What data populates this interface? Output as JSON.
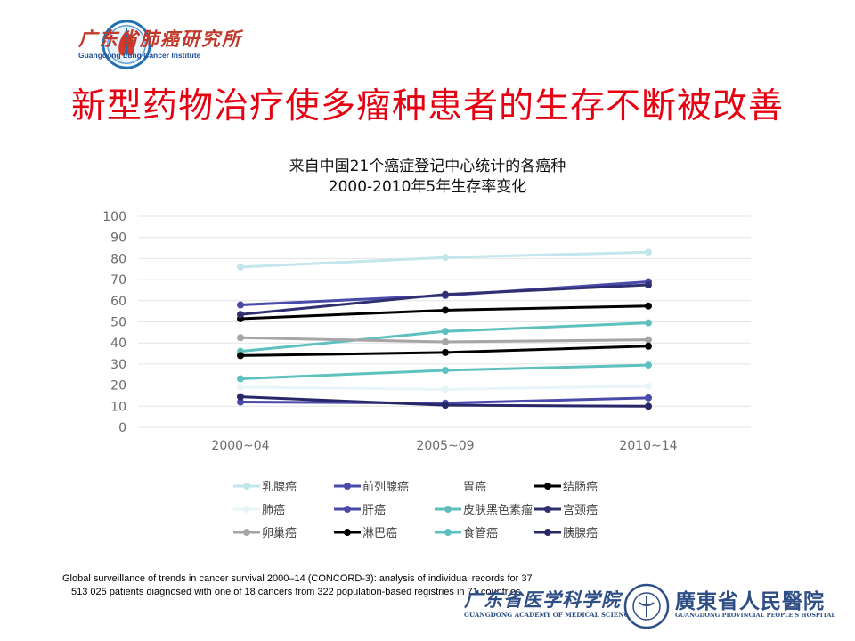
{
  "header": {
    "logo_cn": "广东省肺癌研究所",
    "logo_en": "Guangdong Lung Cancer Institute",
    "slide_title": "新型药物治疗使多瘤种患者的生存不断被改善"
  },
  "footer": {
    "citation_line1": "Global surveillance  of trends in cancer survival  2000–14  (CONCORD-3):  analysis of individual  records for 37",
    "citation_line2": "513 025 patients diagnosed with one of 18 cancers from 322 population-based registries in 71 countries",
    "logo_left_cn": "广东省医学科学院",
    "logo_left_en": "GUANGDONG ACADEMY OF MEDICAL SCIENCES",
    "logo_right_cn": "廣東省人民醫院",
    "logo_right_en": "GUANGDONG PROVINCIAL PEOPLE'S HOSPITAL"
  },
  "chart_data": {
    "type": "line",
    "title": "来自中国21个癌症登记中心统计的各癌种",
    "subtitle": "2000-2010年5年生存率变化",
    "xlabel": "",
    "ylabel": "",
    "categories": [
      "2000~04",
      "2005~09",
      "2010~14"
    ],
    "ylim": [
      0,
      100
    ],
    "yticks": [
      0,
      10,
      20,
      30,
      40,
      50,
      60,
      70,
      80,
      90,
      100
    ],
    "grid": true,
    "legend_position": "bottom",
    "series": [
      {
        "name": "乳腺癌",
        "color": "#c2e6ec",
        "values": [
          76,
          80.5,
          83
        ]
      },
      {
        "name": "前列腺癌",
        "color": "#4a4aaa",
        "values": [
          58,
          62.5,
          69
        ]
      },
      {
        "name": "胃癌",
        "color": "#ffffff",
        "values": [
          null,
          null,
          null
        ]
      },
      {
        "name": "结肠癌",
        "color": "#000000",
        "values": [
          51.5,
          55.5,
          57.5
        ]
      },
      {
        "name": "肺癌",
        "color": "#e8f5f8",
        "values": [
          19,
          18,
          19.5
        ]
      },
      {
        "name": "肝癌",
        "color": "#4a4aaa",
        "values": [
          12,
          11.5,
          14
        ]
      },
      {
        "name": "皮肤黑色素瘤",
        "color": "#5fc0c0",
        "values": [
          36,
          45.5,
          49.5
        ]
      },
      {
        "name": "宫颈癌",
        "color": "#303070",
        "values": [
          53.5,
          63,
          67.5
        ]
      },
      {
        "name": "卵巢癌",
        "color": "#a6a6a6",
        "values": [
          42.5,
          40.5,
          41.5
        ]
      },
      {
        "name": "淋巴癌",
        "color": "#000000",
        "values": [
          34,
          35.5,
          38.5
        ]
      },
      {
        "name": "食管癌",
        "color": "#5fc0c0",
        "values": [
          23,
          27,
          29.5
        ]
      },
      {
        "name": "胰腺癌",
        "color": "#282868",
        "values": [
          14.5,
          10.5,
          10
        ]
      }
    ]
  }
}
